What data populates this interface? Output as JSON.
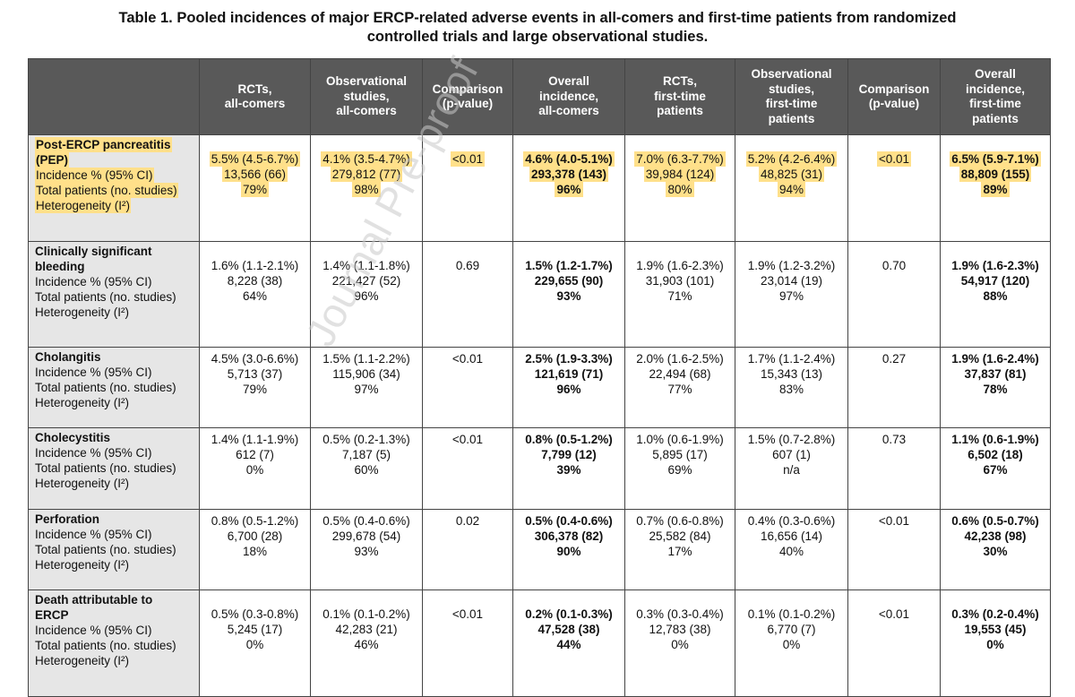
{
  "title": {
    "line1": "Table 1. Pooled incidences of major ERCP-related adverse events in all-comers and first-time patients from randomized",
    "line2": "controlled trials and large observational studies."
  },
  "watermark": "Journal Pre-proof",
  "headers": {
    "rct_all": [
      "RCTs,",
      "all-comers"
    ],
    "obs_all": [
      "Observational",
      "studies,",
      "all-comers"
    ],
    "comp1": [
      "Comparison",
      "(p-value)"
    ],
    "overall_all": [
      "Overall",
      "incidence,",
      "all-comers"
    ],
    "rct_first": [
      "RCTs,",
      "first-time",
      "patients"
    ],
    "obs_first": [
      "Observational",
      "studies,",
      "first-time",
      "patients"
    ],
    "comp2": [
      "Comparison",
      "(p-value)"
    ],
    "overall_first": [
      "Overall",
      "incidence,",
      "first-time",
      "patients"
    ]
  },
  "row_labels": {
    "incidence": "Incidence % (95% CI)",
    "total": "Total patients (no. studies)",
    "heterogeneity": "Heterogeneity (I²)"
  },
  "rows": [
    {
      "name_lines": [
        "Post-ERCP pancreatitis",
        "(PEP)"
      ],
      "rct_all": [
        "5.5% (4.5-6.7%)",
        "13,566 (66)",
        "79%"
      ],
      "obs_all": [
        "4.1% (3.5-4.7%)",
        "279,812 (77)",
        "98%"
      ],
      "p1": "<0.01",
      "overall_all": [
        "4.6% (4.0-5.1%)",
        "293,378 (143)",
        "96%"
      ],
      "rct_first": [
        "7.0% (6.3-7.7%)",
        "39,984 (124)",
        "80%"
      ],
      "obs_first": [
        "5.2% (4.2-6.4%)",
        "48,825 (31)",
        "94%"
      ],
      "p2": "<0.01",
      "overall_first": [
        "6.5% (5.9-7.1%)",
        "88,809 (155)",
        "89%"
      ]
    },
    {
      "name_lines": [
        "Clinically significant",
        "bleeding"
      ],
      "rct_all": [
        "1.6% (1.1-2.1%)",
        "8,228 (38)",
        "64%"
      ],
      "obs_all": [
        "1.4% (1.1-1.8%)",
        "221,427 (52)",
        "96%"
      ],
      "p1": "0.69",
      "overall_all": [
        "1.5% (1.2-1.7%)",
        "229,655 (90)",
        "93%"
      ],
      "rct_first": [
        "1.9% (1.6-2.3%)",
        "31,903 (101)",
        "71%"
      ],
      "obs_first": [
        "1.9% (1.2-3.2%)",
        "23,014 (19)",
        "97%"
      ],
      "p2": "0.70",
      "overall_first": [
        "1.9% (1.6-2.3%)",
        "54,917 (120)",
        "88%"
      ]
    },
    {
      "name_lines": [
        "Cholangitis"
      ],
      "rct_all": [
        "4.5% (3.0-6.6%)",
        "5,713 (37)",
        "79%"
      ],
      "obs_all": [
        "1.5% (1.1-2.2%)",
        "115,906 (34)",
        "97%"
      ],
      "p1": "<0.01",
      "overall_all": [
        "2.5% (1.9-3.3%)",
        "121,619 (71)",
        "96%"
      ],
      "rct_first": [
        "2.0% (1.6-2.5%)",
        "22,494 (68)",
        "77%"
      ],
      "obs_first": [
        "1.7% (1.1-2.4%)",
        "15,343 (13)",
        "83%"
      ],
      "p2": "0.27",
      "overall_first": [
        "1.9% (1.6-2.4%)",
        "37,837 (81)",
        "78%"
      ]
    },
    {
      "name_lines": [
        "Cholecystitis"
      ],
      "rct_all": [
        "1.4% (1.1-1.9%)",
        "612 (7)",
        "0%"
      ],
      "obs_all": [
        "0.5% (0.2-1.3%)",
        "7,187 (5)",
        "60%"
      ],
      "p1": "<0.01",
      "overall_all": [
        "0.8% (0.5-1.2%)",
        "7,799 (12)",
        "39%"
      ],
      "rct_first": [
        "1.0% (0.6-1.9%)",
        "5,895 (17)",
        "69%"
      ],
      "obs_first": [
        "1.5% (0.7-2.8%)",
        "607 (1)",
        "n/a"
      ],
      "p2": "0.73",
      "overall_first": [
        "1.1% (0.6-1.9%)",
        "6,502 (18)",
        "67%"
      ]
    },
    {
      "name_lines": [
        "Perforation"
      ],
      "rct_all": [
        "0.8% (0.5-1.2%)",
        "6,700 (28)",
        "18%"
      ],
      "obs_all": [
        "0.5% (0.4-0.6%)",
        "299,678 (54)",
        "93%"
      ],
      "p1": "0.02",
      "overall_all": [
        "0.5% (0.4-0.6%)",
        "306,378 (82)",
        "90%"
      ],
      "rct_first": [
        "0.7% (0.6-0.8%)",
        "25,582 (84)",
        "17%"
      ],
      "obs_first": [
        "0.4% (0.3-0.6%)",
        "16,656 (14)",
        "40%"
      ],
      "p2": "<0.01",
      "overall_first": [
        "0.6% (0.5-0.7%)",
        "42,238 (98)",
        "30%"
      ]
    },
    {
      "name_lines": [
        "Death attributable to",
        "ERCP"
      ],
      "rct_all": [
        "0.5% (0.3-0.8%)",
        "5,245 (17)",
        "0%"
      ],
      "obs_all": [
        "0.1% (0.1-0.2%)",
        "42,283 (21)",
        "46%"
      ],
      "p1": "<0.01",
      "overall_all": [
        "0.2% (0.1-0.3%)",
        "47,528 (38)",
        "44%"
      ],
      "rct_first": [
        "0.3% (0.3-0.4%)",
        "12,783 (38)",
        "0%"
      ],
      "obs_first": [
        "0.1% (0.1-0.2%)",
        "6,770 (7)",
        "0%"
      ],
      "p2": "<0.01",
      "overall_first": [
        "0.3% (0.2-0.4%)",
        "19,553 (45)",
        "0%"
      ]
    }
  ]
}
